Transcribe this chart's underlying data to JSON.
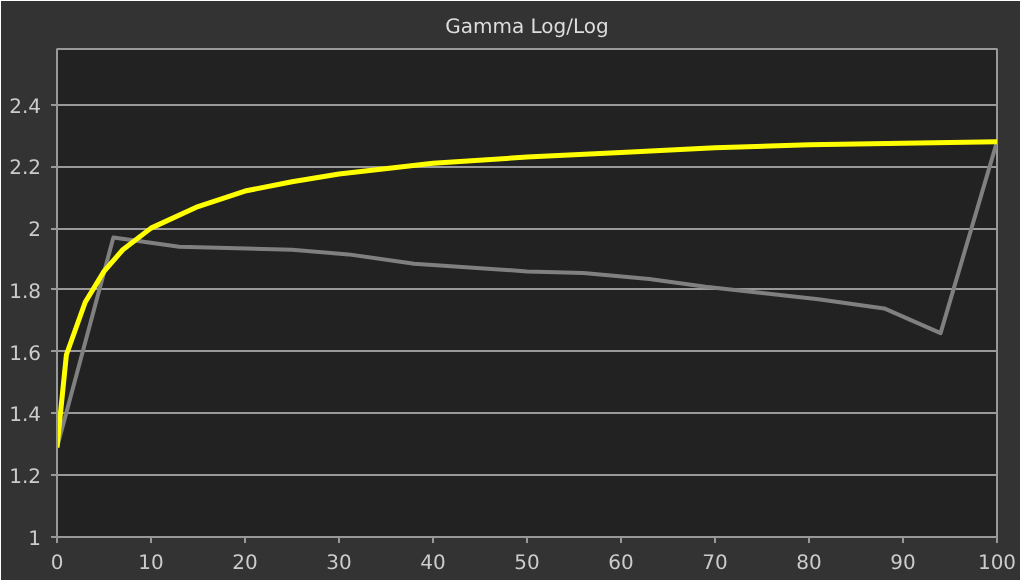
{
  "chart_data": {
    "type": "line",
    "title": "Gamma Log/Log",
    "xlim": [
      0,
      100
    ],
    "xticks": [
      0,
      10,
      20,
      30,
      40,
      50,
      60,
      70,
      80,
      90,
      100
    ],
    "ylim": [
      1,
      2.58
    ],
    "yticks": [
      1,
      1.2,
      1.4,
      1.6,
      1.8,
      2,
      2.2,
      2.4
    ],
    "grid": "y",
    "marker": "none",
    "line_style": "solid",
    "series": [
      {
        "color": "#808080",
        "x": [
          0,
          6,
          13,
          25,
          31,
          38,
          50,
          56,
          63,
          69,
          75,
          81,
          88,
          94,
          100
        ],
        "values": [
          1.29,
          1.97,
          1.94,
          1.93,
          1.915,
          1.885,
          1.86,
          1.855,
          1.835,
          1.81,
          1.79,
          1.77,
          1.74,
          1.66,
          2.28
        ]
      },
      {
        "color": "#ffff00",
        "x": [
          0,
          1,
          3,
          5,
          7,
          10,
          15,
          20,
          25,
          30,
          40,
          50,
          60,
          70,
          80,
          90,
          100
        ],
        "values": [
          1.29,
          1.59,
          1.76,
          1.86,
          1.93,
          2.0,
          2.07,
          2.12,
          2.15,
          2.175,
          2.21,
          2.23,
          2.245,
          2.26,
          2.27,
          2.275,
          2.28
        ]
      }
    ]
  }
}
